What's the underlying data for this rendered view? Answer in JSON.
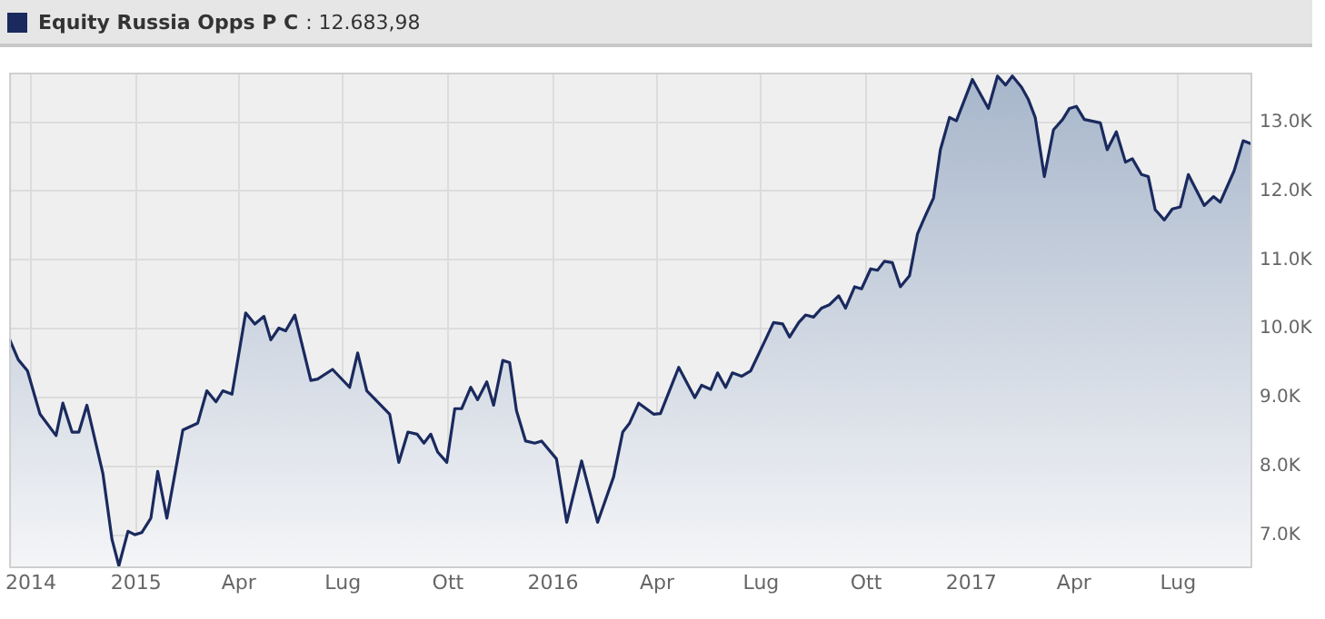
{
  "chart_data": {
    "type": "area",
    "legend": "top left",
    "grid": true,
    "marker": "none",
    "line_style": "solid",
    "annotations": [
      ": 12.683,98"
    ],
    "xlim": [
      "2014-09-12",
      "2017-09-04"
    ],
    "xticks": [
      {
        "value": "2014-10-01",
        "label": "2014"
      },
      {
        "value": "2015-01-01",
        "label": "2015"
      },
      {
        "value": "2015-04-01",
        "label": "Apr"
      },
      {
        "value": "2015-07-01",
        "label": "Lug"
      },
      {
        "value": "2015-10-01",
        "label": "Ott"
      },
      {
        "value": "2016-01-01",
        "label": "2016"
      },
      {
        "value": "2016-04-01",
        "label": "Apr"
      },
      {
        "value": "2016-07-01",
        "label": "Lug"
      },
      {
        "value": "2016-10-01",
        "label": "Ott"
      },
      {
        "value": "2017-01-01",
        "label": "2017"
      },
      {
        "value": "2017-04-01",
        "label": "Apr"
      },
      {
        "value": "2017-07-01",
        "label": "Lug"
      }
    ],
    "ylim": [
      6550,
      13720
    ],
    "yticks": [
      {
        "value": 7000,
        "label": "7.0K"
      },
      {
        "value": 8000,
        "label": "8.0K"
      },
      {
        "value": 9000,
        "label": "9.0K"
      },
      {
        "value": 10000,
        "label": "10.0K"
      },
      {
        "value": 11000,
        "label": "11.0K"
      },
      {
        "value": 12000,
        "label": "12.0K"
      },
      {
        "value": 13000,
        "label": "13.0K"
      }
    ],
    "series": [
      {
        "name": "Equity Russia Opps P C",
        "color": "#1a2a5e",
        "x": [
          "2014-09-12",
          "2014-09-20",
          "2014-09-28",
          "2014-10-09",
          "2014-10-23",
          "2014-10-29",
          "2014-11-06",
          "2014-11-12",
          "2014-11-19",
          "2014-12-03",
          "2014-12-11",
          "2014-12-17",
          "2014-12-25",
          "2014-12-31",
          "2015-01-06",
          "2015-01-14",
          "2015-01-20",
          "2015-01-28",
          "2015-02-11",
          "2015-02-24",
          "2015-03-04",
          "2015-03-12",
          "2015-03-18",
          "2015-03-26",
          "2015-04-07",
          "2015-04-15",
          "2015-04-23",
          "2015-04-29",
          "2015-05-06",
          "2015-05-12",
          "2015-05-20",
          "2015-06-03",
          "2015-06-09",
          "2015-06-22",
          "2015-07-07",
          "2015-07-14",
          "2015-07-22",
          "2015-08-11",
          "2015-08-19",
          "2015-08-27",
          "2015-09-04",
          "2015-09-10",
          "2015-09-16",
          "2015-09-22",
          "2015-09-30",
          "2015-10-07",
          "2015-10-13",
          "2015-10-21",
          "2015-10-27",
          "2015-11-04",
          "2015-11-10",
          "2015-11-18",
          "2015-11-24",
          "2015-11-30",
          "2015-12-08",
          "2015-12-16",
          "2015-12-22",
          "2016-01-04",
          "2016-01-13",
          "2016-01-26",
          "2016-02-09",
          "2016-02-23",
          "2016-03-02",
          "2016-03-08",
          "2016-03-16",
          "2016-03-29",
          "2016-04-04",
          "2016-04-15",
          "2016-04-20",
          "2016-05-04",
          "2016-05-10",
          "2016-05-18",
          "2016-05-24",
          "2016-05-31",
          "2016-06-06",
          "2016-06-14",
          "2016-06-22",
          "2016-07-06",
          "2016-07-12",
          "2016-07-20",
          "2016-07-26",
          "2016-08-03",
          "2016-08-09",
          "2016-08-16",
          "2016-08-23",
          "2016-08-30",
          "2016-09-07",
          "2016-09-13",
          "2016-09-21",
          "2016-09-27",
          "2016-10-05",
          "2016-10-11",
          "2016-10-17",
          "2016-10-24",
          "2016-10-31",
          "2016-11-08",
          "2016-11-15",
          "2016-11-21",
          "2016-11-29",
          "2016-12-05",
          "2016-12-13",
          "2016-12-19",
          "2017-01-02",
          "2017-01-16",
          "2017-01-24",
          "2017-01-31",
          "2017-02-06",
          "2017-02-14",
          "2017-02-20",
          "2017-02-26",
          "2017-03-06",
          "2017-03-14",
          "2017-03-22",
          "2017-03-28",
          "2017-04-03",
          "2017-04-10",
          "2017-04-24",
          "2017-04-30",
          "2017-05-08",
          "2017-05-16",
          "2017-05-22",
          "2017-05-30",
          "2017-06-05",
          "2017-06-11",
          "2017-06-19",
          "2017-06-26",
          "2017-07-03",
          "2017-07-10",
          "2017-07-24",
          "2017-08-01",
          "2017-08-07",
          "2017-08-19",
          "2017-08-27",
          "2017-09-04"
        ],
        "values": [
          9860,
          9550,
          9390,
          8760,
          8450,
          8920,
          8500,
          8500,
          8890,
          7900,
          6940,
          6560,
          7060,
          7010,
          7040,
          7250,
          7930,
          7250,
          8530,
          8630,
          9100,
          8940,
          9100,
          9050,
          10230,
          10070,
          10180,
          9840,
          10010,
          9970,
          10200,
          9250,
          9270,
          9410,
          9150,
          9650,
          9100,
          8760,
          8060,
          8500,
          8470,
          8340,
          8470,
          8210,
          8060,
          8840,
          8840,
          9150,
          8970,
          9230,
          8890,
          9540,
          9510,
          8810,
          8370,
          8340,
          8370,
          8110,
          7190,
          8080,
          7190,
          7850,
          8500,
          8630,
          8920,
          8760,
          8770,
          9230,
          9440,
          9000,
          9180,
          9120,
          9360,
          9150,
          9360,
          9310,
          9390,
          9880,
          10090,
          10070,
          9880,
          10090,
          10200,
          10170,
          10300,
          10350,
          10480,
          10300,
          10610,
          10580,
          10870,
          10850,
          10980,
          10960,
          10610,
          10770,
          11380,
          11610,
          11900,
          12600,
          13070,
          13020,
          13620,
          13200,
          13670,
          13540,
          13670,
          13510,
          13330,
          13070,
          12210,
          12890,
          13040,
          13200,
          13230,
          13040,
          12990,
          12600,
          12860,
          12420,
          12470,
          12240,
          12210,
          11730,
          11580,
          11740,
          11770,
          12240,
          11790,
          11920,
          11840,
          12290,
          12730,
          12680
        ]
      }
    ]
  }
}
